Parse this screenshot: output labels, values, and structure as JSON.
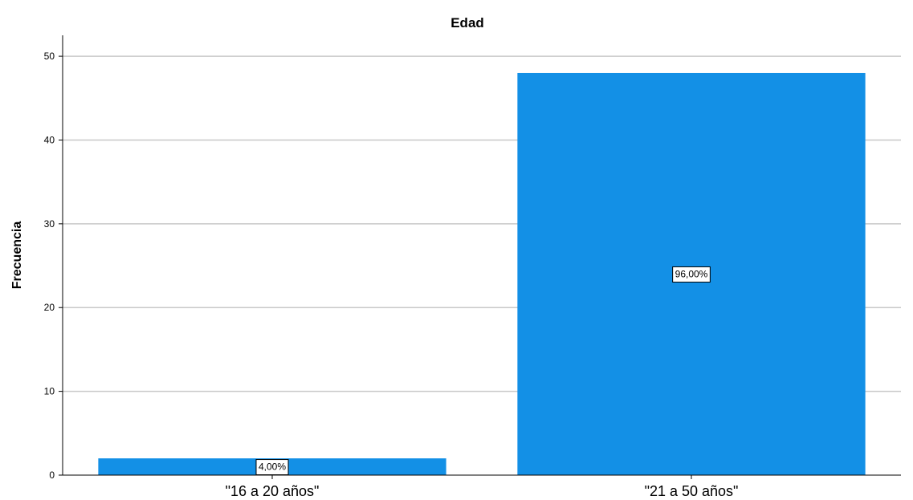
{
  "chart_data": {
    "type": "bar",
    "title": "Edad",
    "xlabel": "",
    "ylabel": "Frecuencia",
    "categories": [
      "\"16 a 20 años\"",
      "\"21 a 50 años\""
    ],
    "values": [
      2,
      48
    ],
    "data_labels": [
      "4,00%",
      "96,00%"
    ],
    "ylim": [
      0,
      52.5
    ],
    "yticks": [
      0,
      10,
      20,
      30,
      40,
      50
    ],
    "grid": true,
    "legend": "none",
    "bar_color": "#1390e6"
  }
}
